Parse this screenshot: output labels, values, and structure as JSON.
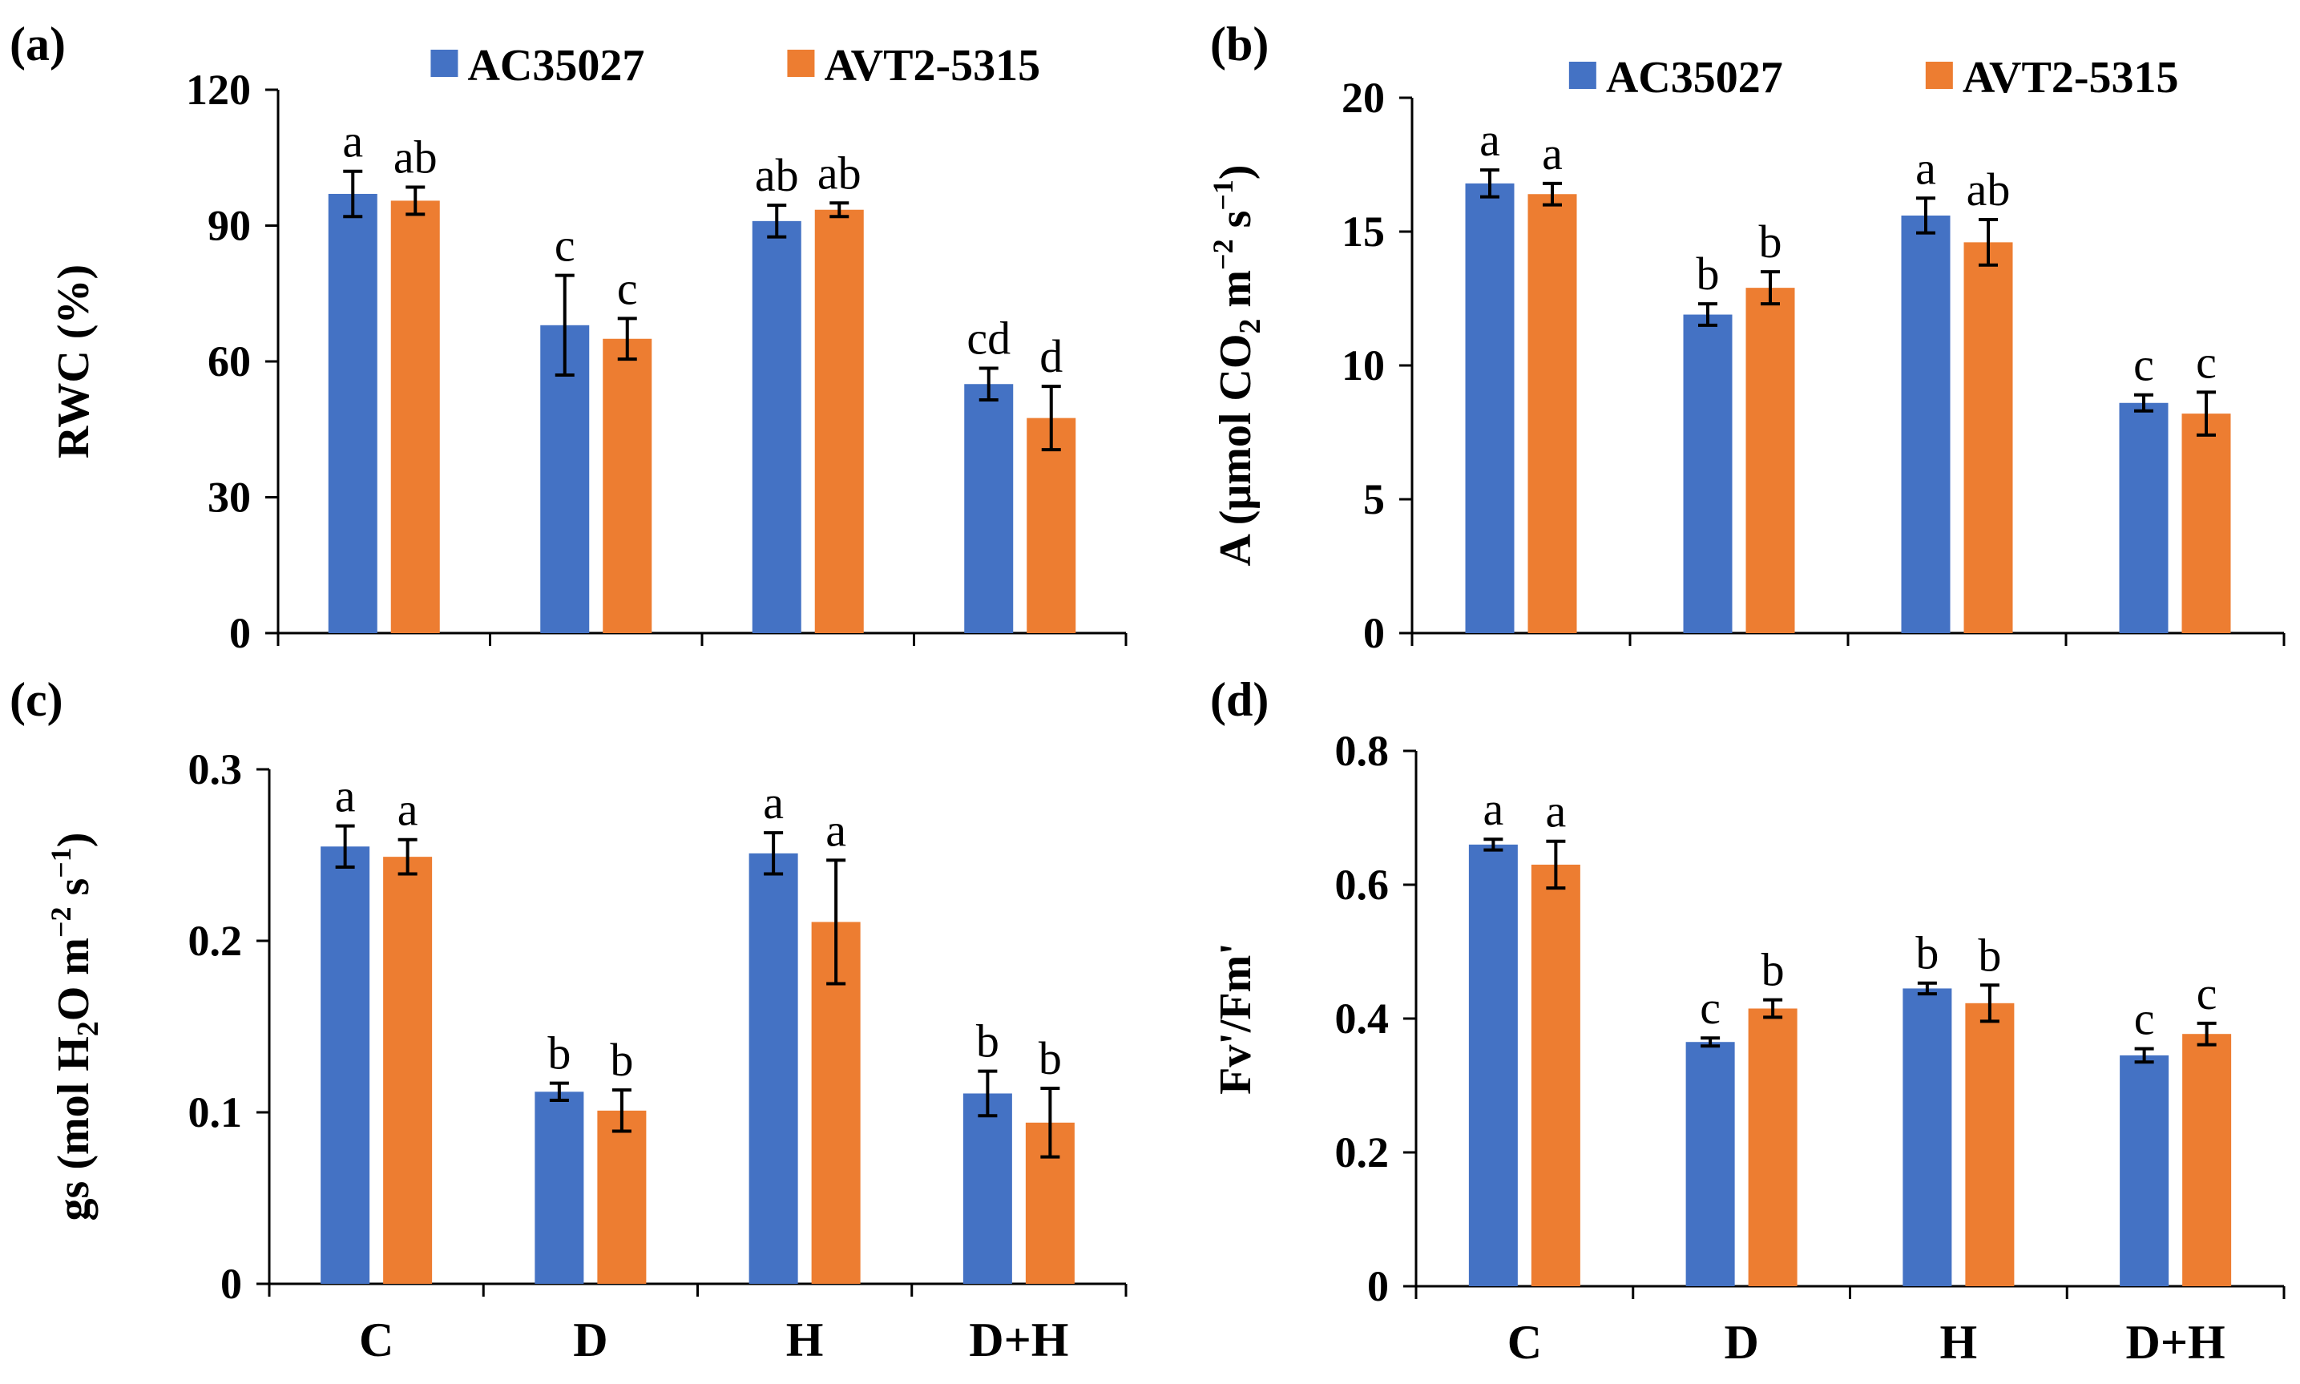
{
  "colors": {
    "series1": "#4472C4",
    "series2": "#ED7D31",
    "axis": "#000000"
  },
  "legend": {
    "series1": "AC35027",
    "series2": "AVT2-5315"
  },
  "chart_data": [
    {
      "type": "bar",
      "panel": "(a)",
      "ylabel_parts": [
        "RWC (%)"
      ],
      "categories": [
        "C",
        "D",
        "H",
        "D+H"
      ],
      "ylim": [
        0,
        120
      ],
      "yticks": [
        0,
        30,
        60,
        90,
        120
      ],
      "yticklabels": [
        "0",
        "30",
        "60",
        "90",
        "120"
      ],
      "show_legend": true,
      "show_categories": false,
      "series": [
        {
          "name": "AC35027",
          "values": [
            97,
            68,
            91,
            55
          ],
          "errors": [
            5,
            11,
            3.5,
            3.5
          ],
          "letters": [
            "a",
            "c",
            "ab",
            "cd"
          ]
        },
        {
          "name": "AVT2-5315",
          "values": [
            95.5,
            65,
            93.5,
            47.5
          ],
          "errors": [
            3,
            4.5,
            1.5,
            7
          ],
          "letters": [
            "ab",
            "c",
            "ab",
            "d"
          ]
        }
      ]
    },
    {
      "type": "bar",
      "panel": "(b)",
      "ylabel_parts": [
        "A (μmol CO",
        "2",
        " m",
        "−2",
        " s",
        "−1",
        ")"
      ],
      "categories": [
        "C",
        "D",
        "H",
        "D+H"
      ],
      "ylim": [
        0,
        20
      ],
      "yticks": [
        0,
        5,
        10,
        15,
        20
      ],
      "yticklabels": [
        "0",
        "5",
        "10",
        "15",
        "20"
      ],
      "show_legend": true,
      "show_categories": false,
      "series": [
        {
          "name": "AC35027",
          "values": [
            16.8,
            11.9,
            15.6,
            8.6
          ],
          "errors": [
            0.5,
            0.4,
            0.65,
            0.3
          ],
          "letters": [
            "a",
            "b",
            "a",
            "c"
          ]
        },
        {
          "name": "AVT2-5315",
          "values": [
            16.4,
            12.9,
            14.6,
            8.2
          ],
          "errors": [
            0.4,
            0.6,
            0.85,
            0.8
          ],
          "letters": [
            "a",
            "b",
            "ab",
            "c"
          ]
        }
      ]
    },
    {
      "type": "bar",
      "panel": "(c)",
      "ylabel_parts": [
        "gs (mol H",
        "2",
        "O m",
        "−2",
        " s",
        "−1",
        ")"
      ],
      "categories": [
        "C",
        "D",
        "H",
        "D+H"
      ],
      "ylim": [
        0,
        0.3
      ],
      "yticks": [
        0,
        0.1,
        0.2,
        0.3
      ],
      "yticklabels": [
        "0",
        "0.1",
        "0.2",
        "0.3"
      ],
      "show_legend": false,
      "show_categories": true,
      "series": [
        {
          "name": "AC35027",
          "values": [
            0.255,
            0.112,
            0.251,
            0.111
          ],
          "errors": [
            0.012,
            0.005,
            0.012,
            0.013
          ],
          "letters": [
            "a",
            "b",
            "a",
            "b"
          ]
        },
        {
          "name": "AVT2-5315",
          "values": [
            0.249,
            0.101,
            0.211,
            0.094
          ],
          "errors": [
            0.01,
            0.012,
            0.036,
            0.02
          ],
          "letters": [
            "a",
            "b",
            "a",
            "b"
          ]
        }
      ]
    },
    {
      "type": "bar",
      "panel": "(d)",
      "ylabel_parts": [
        "Fv'/Fm'"
      ],
      "categories": [
        "C",
        "D",
        "H",
        "D+H"
      ],
      "ylim": [
        0,
        0.8
      ],
      "yticks": [
        0,
        0.2,
        0.4,
        0.6,
        0.8
      ],
      "yticklabels": [
        "0",
        "0.2",
        "0.4",
        "0.6",
        "0.8"
      ],
      "show_legend": false,
      "show_categories": true,
      "series": [
        {
          "name": "AC35027",
          "values": [
            0.66,
            0.365,
            0.445,
            0.345
          ],
          "errors": [
            0.008,
            0.006,
            0.008,
            0.01
          ],
          "letters": [
            "a",
            "c",
            "b",
            "c"
          ]
        },
        {
          "name": "AVT2-5315",
          "values": [
            0.63,
            0.415,
            0.423,
            0.377
          ],
          "errors": [
            0.035,
            0.013,
            0.027,
            0.016
          ],
          "letters": [
            "a",
            "b",
            "b",
            "c"
          ]
        }
      ]
    }
  ]
}
